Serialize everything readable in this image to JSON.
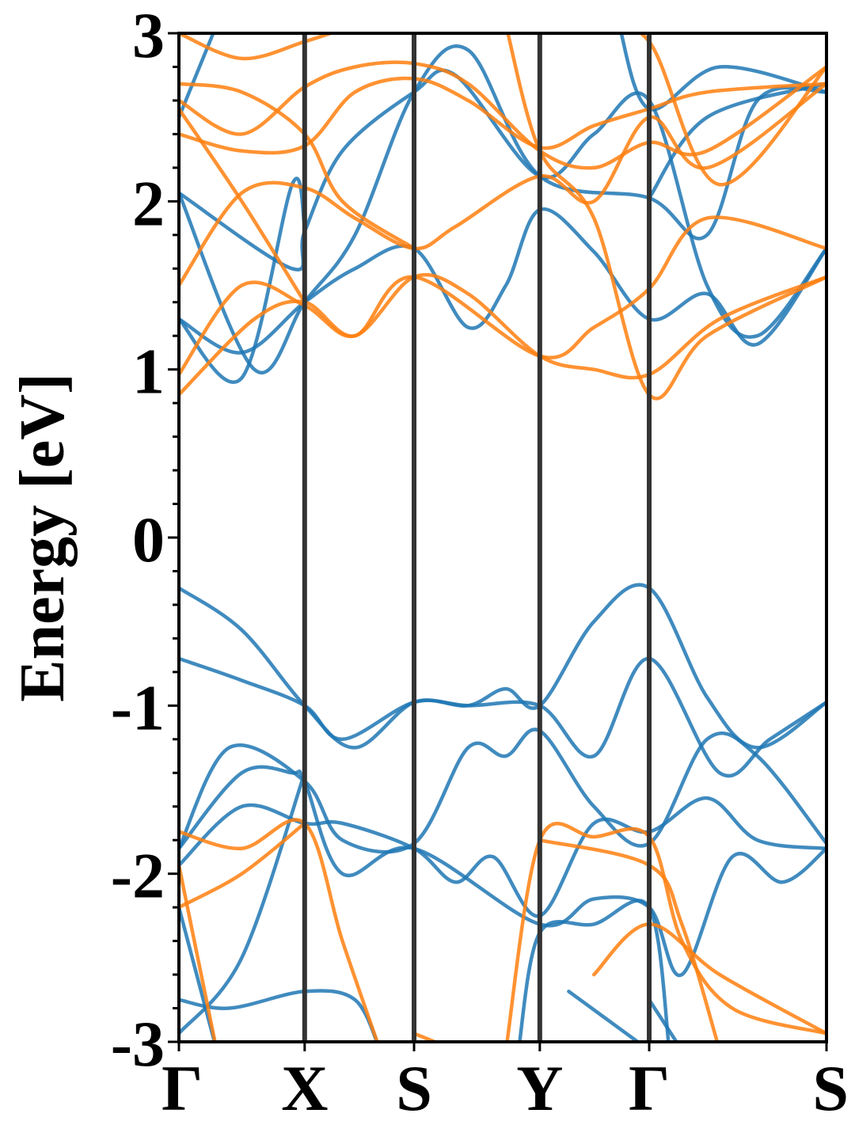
{
  "chart_data": {
    "type": "line",
    "title": "",
    "ylabel": "Energy [eV]",
    "xlabel": "",
    "ylim": [
      -3,
      3
    ],
    "yticks": [
      -3,
      -2,
      -1,
      0,
      1,
      2,
      3
    ],
    "yticklabels": [
      "-3",
      "-2",
      "-1",
      "0",
      "1",
      "2",
      "3"
    ],
    "yminor_step": 0.2,
    "kpath": {
      "labels": [
        "Γ",
        "X",
        "S",
        "Y",
        "Γ",
        "S"
      ],
      "positions": [
        0,
        1,
        1.87,
        2.87,
        3.74,
        5.15
      ]
    },
    "grid": false,
    "colors": {
      "spin_up": "#1f77b4",
      "spin_down": "#ff7f0e",
      "kline": "#333333"
    },
    "series": [
      {
        "color": "spin_up",
        "points": [
          [
            0,
            -0.3
          ],
          [
            0.5,
            -0.55
          ],
          [
            1,
            -1.0
          ],
          [
            1.4,
            -1.25
          ],
          [
            1.87,
            -0.98
          ],
          [
            2.3,
            -1.0
          ],
          [
            2.6,
            -0.9
          ],
          [
            2.87,
            -1.0
          ],
          [
            3.3,
            -0.5
          ],
          [
            3.74,
            -0.3
          ],
          [
            4.2,
            -0.95
          ],
          [
            4.6,
            -1.25
          ],
          [
            5.15,
            -0.98
          ]
        ]
      },
      {
        "color": "spin_up",
        "points": [
          [
            0,
            -0.72
          ],
          [
            0.5,
            -0.85
          ],
          [
            1,
            -1.0
          ],
          [
            1.3,
            -1.2
          ],
          [
            1.87,
            -0.98
          ],
          [
            2.3,
            -1.0
          ],
          [
            2.87,
            -1.0
          ],
          [
            3.3,
            -1.3
          ],
          [
            3.74,
            -0.72
          ],
          [
            4.3,
            -1.4
          ],
          [
            4.7,
            -1.2
          ],
          [
            5.15,
            -0.98
          ]
        ]
      },
      {
        "color": "spin_up",
        "points": [
          [
            0,
            -1.85
          ],
          [
            0.4,
            -1.25
          ],
          [
            1,
            -1.45
          ],
          [
            1.3,
            -1.8
          ],
          [
            1.87,
            -1.82
          ],
          [
            2.3,
            -1.25
          ],
          [
            2.6,
            -1.3
          ],
          [
            2.87,
            -1.15
          ],
          [
            3.3,
            -1.6
          ],
          [
            3.74,
            -1.82
          ],
          [
            4.2,
            -1.2
          ],
          [
            4.6,
            -1.3
          ],
          [
            5.15,
            -1.82
          ]
        ]
      },
      {
        "color": "spin_up",
        "points": [
          [
            0,
            -1.95
          ],
          [
            0.5,
            -1.6
          ],
          [
            1,
            -1.7
          ],
          [
            1.3,
            -1.7
          ],
          [
            1.87,
            -1.85
          ],
          [
            2.2,
            -2.05
          ],
          [
            2.5,
            -1.9
          ],
          [
            2.87,
            -2.25
          ],
          [
            3.3,
            -1.7
          ],
          [
            3.74,
            -1.75
          ],
          [
            4.2,
            -1.55
          ],
          [
            4.6,
            -1.8
          ],
          [
            5.15,
            -1.85
          ]
        ]
      },
      {
        "color": "spin_up",
        "points": [
          [
            0,
            -1.85
          ],
          [
            0.5,
            -1.4
          ],
          [
            0.9,
            -1.4
          ],
          [
            1,
            -1.45
          ],
          [
            1.3,
            -2.0
          ],
          [
            1.87,
            -1.85
          ],
          [
            2.87,
            -2.3
          ],
          [
            3.3,
            -2.15
          ],
          [
            3.74,
            -2.2
          ],
          [
            4.0,
            -2.6
          ],
          [
            4.4,
            -1.9
          ],
          [
            4.8,
            -2.05
          ],
          [
            5.15,
            -1.85
          ]
        ]
      },
      {
        "color": "spin_up",
        "points": [
          [
            0,
            -2.2
          ],
          [
            0.3,
            -3.05
          ]
        ]
      },
      {
        "color": "spin_up",
        "points": [
          [
            0,
            -2.75
          ],
          [
            0.4,
            -2.8
          ],
          [
            1,
            -2.7
          ],
          [
            1.4,
            -2.75
          ],
          [
            1.6,
            -3.05
          ]
        ]
      },
      {
        "color": "spin_up",
        "points": [
          [
            0,
            -2.95
          ],
          [
            0.5,
            -2.5
          ],
          [
            1,
            -1.4
          ]
        ]
      },
      {
        "color": "spin_up",
        "points": [
          [
            2.7,
            -3.05
          ],
          [
            2.87,
            -2.35
          ],
          [
            3.3,
            -2.3
          ],
          [
            3.74,
            -2.2
          ],
          [
            3.9,
            -3.05
          ]
        ]
      },
      {
        "color": "spin_up",
        "points": [
          [
            3.1,
            -2.7
          ],
          [
            3.74,
            -3.05
          ]
        ]
      },
      {
        "color": "spin_up",
        "points": [
          [
            3.74,
            -2.75
          ],
          [
            4.0,
            -3.05
          ]
        ]
      },
      {
        "color": "spin_down",
        "points": [
          [
            0,
            -1.75
          ],
          [
            0.5,
            -1.85
          ],
          [
            1,
            -1.7
          ],
          [
            1.3,
            -2.4
          ],
          [
            1.6,
            -3.05
          ]
        ]
      },
      {
        "color": "spin_down",
        "points": [
          [
            0,
            -2.2
          ],
          [
            0.5,
            -2.0
          ],
          [
            1,
            -1.7
          ]
        ]
      },
      {
        "color": "spin_down",
        "points": [
          [
            0,
            -1.95
          ],
          [
            0.3,
            -3.05
          ]
        ]
      },
      {
        "color": "spin_down",
        "points": [
          [
            1.87,
            -2.95
          ],
          [
            2.2,
            -3.05
          ]
        ]
      },
      {
        "color": "spin_down",
        "points": [
          [
            2.6,
            -3.05
          ],
          [
            2.87,
            -1.8
          ],
          [
            3.3,
            -1.78
          ],
          [
            3.74,
            -1.78
          ],
          [
            4.0,
            -2.4
          ],
          [
            4.4,
            -2.8
          ],
          [
            5.15,
            -2.95
          ]
        ]
      },
      {
        "color": "spin_down",
        "points": [
          [
            2.87,
            -1.8
          ],
          [
            3.74,
            -1.95
          ],
          [
            4.0,
            -2.3
          ],
          [
            4.3,
            -3.05
          ]
        ]
      },
      {
        "color": "spin_down",
        "points": [
          [
            3.3,
            -2.6
          ],
          [
            3.74,
            -2.3
          ],
          [
            4.3,
            -2.6
          ],
          [
            5.15,
            -2.95
          ]
        ]
      },
      {
        "color": "spin_up",
        "points": [
          [
            0,
            1.3
          ],
          [
            0.5,
            1.1
          ],
          [
            1,
            1.4
          ],
          [
            1.4,
            1.6
          ],
          [
            1.87,
            1.72
          ],
          [
            2.3,
            1.25
          ],
          [
            2.6,
            1.5
          ],
          [
            2.87,
            1.95
          ],
          [
            3.3,
            1.7
          ],
          [
            3.74,
            1.3
          ],
          [
            4.2,
            1.45
          ],
          [
            4.6,
            1.15
          ],
          [
            5.15,
            1.72
          ]
        ]
      },
      {
        "color": "spin_up",
        "points": [
          [
            0,
            2.05
          ],
          [
            0.6,
            1.0
          ],
          [
            1,
            1.4
          ],
          [
            1.4,
            1.8
          ],
          [
            1.87,
            2.65
          ],
          [
            2.3,
            2.9
          ],
          [
            2.87,
            2.15
          ],
          [
            3.74,
            2.02
          ],
          [
            4.2,
            1.8
          ],
          [
            4.6,
            2.6
          ],
          [
            5.15,
            2.65
          ]
        ]
      },
      {
        "color": "spin_up",
        "points": [
          [
            0,
            2.05
          ],
          [
            0.9,
            1.6
          ],
          [
            1,
            1.82
          ],
          [
            1.3,
            2.3
          ],
          [
            1.87,
            2.65
          ],
          [
            2.2,
            2.75
          ],
          [
            2.87,
            2.15
          ],
          [
            3.3,
            2.4
          ],
          [
            3.74,
            2.6
          ],
          [
            4.2,
            1.5
          ],
          [
            4.6,
            1.2
          ],
          [
            5.15,
            1.72
          ]
        ]
      },
      {
        "color": "spin_up",
        "points": [
          [
            0,
            1.3
          ],
          [
            0.5,
            0.95
          ],
          [
            0.9,
            2.1
          ],
          [
            1,
            1.85
          ]
        ]
      },
      {
        "color": "spin_up",
        "points": [
          [
            0,
            2.5
          ],
          [
            0.3,
            3.05
          ]
        ]
      },
      {
        "color": "spin_up",
        "points": [
          [
            3.5,
            3.05
          ],
          [
            3.74,
            2.55
          ],
          [
            4.3,
            2.8
          ],
          [
            5.15,
            2.65
          ]
        ]
      },
      {
        "color": "spin_up",
        "points": [
          [
            3.74,
            2.02
          ],
          [
            4.2,
            2.5
          ],
          [
            5.15,
            2.7
          ]
        ]
      },
      {
        "color": "spin_down",
        "points": [
          [
            0,
            0.97
          ],
          [
            0.5,
            1.5
          ],
          [
            1,
            1.38
          ],
          [
            1.4,
            1.2
          ],
          [
            1.87,
            1.55
          ],
          [
            2.3,
            1.45
          ],
          [
            2.87,
            1.08
          ],
          [
            3.3,
            1.0
          ],
          [
            3.74,
            0.97
          ],
          [
            4.3,
            1.3
          ],
          [
            5.15,
            1.55
          ]
        ]
      },
      {
        "color": "spin_down",
        "points": [
          [
            0,
            0.85
          ],
          [
            0.6,
            1.3
          ],
          [
            1,
            1.4
          ],
          [
            1.4,
            1.2
          ],
          [
            1.87,
            1.55
          ],
          [
            2.87,
            1.08
          ],
          [
            3.3,
            1.25
          ],
          [
            3.74,
            1.48
          ],
          [
            4.2,
            1.9
          ],
          [
            5.15,
            1.72
          ]
        ]
      },
      {
        "color": "spin_down",
        "points": [
          [
            0,
            1.5
          ],
          [
            0.5,
            2.05
          ],
          [
            1,
            2.08
          ],
          [
            1.4,
            1.9
          ],
          [
            1.87,
            1.72
          ],
          [
            2.2,
            1.85
          ],
          [
            2.87,
            2.15
          ],
          [
            3.3,
            2.0
          ],
          [
            3.74,
            2.5
          ],
          [
            4.2,
            2.2
          ],
          [
            5.15,
            2.7
          ]
        ]
      },
      {
        "color": "spin_down",
        "points": [
          [
            0,
            2.4
          ],
          [
            0.5,
            2.3
          ],
          [
            1,
            2.33
          ],
          [
            1.4,
            2.65
          ],
          [
            1.87,
            2.73
          ],
          [
            2.3,
            2.6
          ],
          [
            2.87,
            2.32
          ],
          [
            3.3,
            2.45
          ],
          [
            3.74,
            2.55
          ],
          [
            4.2,
            2.65
          ],
          [
            5.15,
            2.7
          ]
        ]
      },
      {
        "color": "spin_down",
        "points": [
          [
            0,
            2.6
          ],
          [
            0.5,
            2.4
          ],
          [
            1,
            2.68
          ],
          [
            1.4,
            2.8
          ],
          [
            1.87,
            2.82
          ],
          [
            2.3,
            2.7
          ],
          [
            2.87,
            2.3
          ],
          [
            3.3,
            2.2
          ],
          [
            3.74,
            2.35
          ],
          [
            4.2,
            2.3
          ],
          [
            5.15,
            2.8
          ]
        ]
      },
      {
        "color": "spin_down",
        "points": [
          [
            0,
            2.7
          ],
          [
            0.5,
            2.65
          ],
          [
            1,
            2.4
          ],
          [
            1.3,
            2.0
          ],
          [
            1.87,
            1.72
          ]
        ]
      },
      {
        "color": "spin_down",
        "points": [
          [
            0,
            2.55
          ],
          [
            0.5,
            2.0
          ],
          [
            1,
            1.4
          ]
        ]
      },
      {
        "color": "spin_down",
        "points": [
          [
            0,
            3.0
          ],
          [
            0.5,
            2.85
          ],
          [
            1,
            2.95
          ],
          [
            1.4,
            3.05
          ]
        ]
      },
      {
        "color": "spin_down",
        "points": [
          [
            2.6,
            3.05
          ],
          [
            2.87,
            2.3
          ],
          [
            3.3,
            1.9
          ],
          [
            3.74,
            0.85
          ],
          [
            4.2,
            1.2
          ],
          [
            5.15,
            1.55
          ]
        ]
      },
      {
        "color": "spin_down",
        "points": [
          [
            3.3,
            3.05
          ],
          [
            3.74,
            2.95
          ],
          [
            4.3,
            2.1
          ],
          [
            5.15,
            2.8
          ]
        ]
      }
    ]
  }
}
